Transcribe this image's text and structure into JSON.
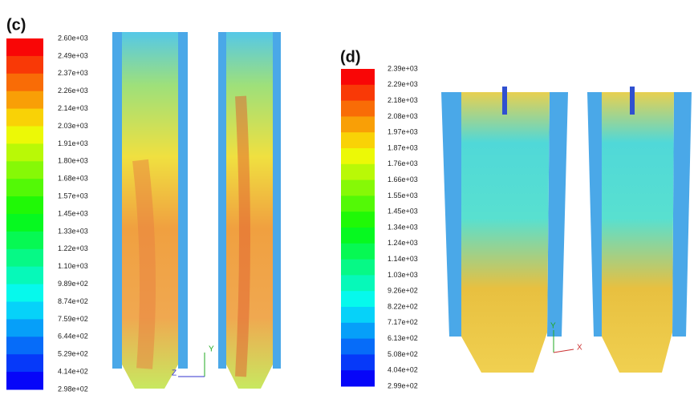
{
  "panels": [
    {
      "label": "(c)",
      "scale": [
        "2.60e+03",
        "2.49e+03",
        "2.37e+03",
        "2.26e+03",
        "2.14e+03",
        "2.03e+03",
        "1.91e+03",
        "1.80e+03",
        "1.68e+03",
        "1.57e+03",
        "1.45e+03",
        "1.33e+03",
        "1.22e+03",
        "1.10e+03",
        "9.89e+02",
        "8.74e+02",
        "7.59e+02",
        "6.44e+02",
        "5.29e+02",
        "4.14e+02",
        "2.98e+02"
      ]
    },
    {
      "label": "(d)",
      "scale": [
        "2.39e+03",
        "2.29e+03",
        "2.18e+03",
        "2.08e+03",
        "1.97e+03",
        "1.87e+03",
        "1.76e+03",
        "1.66e+03",
        "1.55e+03",
        "1.45e+03",
        "1.34e+03",
        "1.24e+03",
        "1.14e+03",
        "1.03e+03",
        "9.26e+02",
        "8.22e+02",
        "7.17e+02",
        "6.13e+02",
        "5.08e+02",
        "4.04e+02",
        "2.99e+02"
      ]
    }
  ],
  "axes": {
    "y": "Y",
    "z": "Z",
    "x": "X"
  }
}
